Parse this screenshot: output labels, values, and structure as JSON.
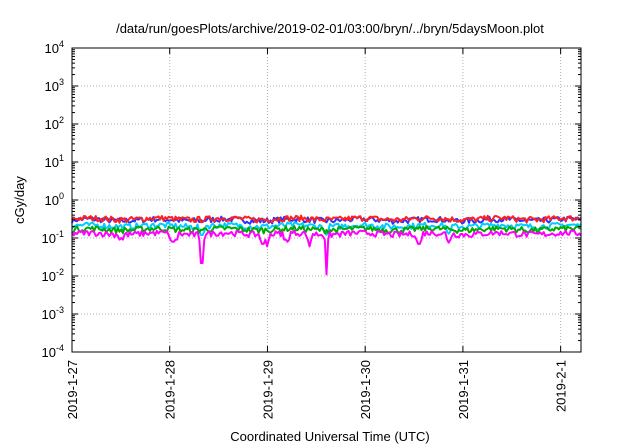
{
  "chart_data": {
    "type": "line",
    "title": "/data/run/goesPlots/archive/2019-02-01/03:00/bryn/../bryn/5daysMoon.plot",
    "xlabel": "Coordinated Universal Time (UTC)",
    "ylabel": "cGy/day",
    "y_scale": "log",
    "ylim": [
      0.0001,
      10000
    ],
    "y_ticks": [
      {
        "base": "10",
        "exp": "-4"
      },
      {
        "base": "10",
        "exp": "-3"
      },
      {
        "base": "10",
        "exp": "-2"
      },
      {
        "base": "10",
        "exp": "-1"
      },
      {
        "base": "10",
        "exp": "0"
      },
      {
        "base": "10",
        "exp": "1"
      },
      {
        "base": "10",
        "exp": "2"
      },
      {
        "base": "10",
        "exp": "3"
      },
      {
        "base": "10",
        "exp": "4"
      }
    ],
    "xlim": [
      "2019-01-27",
      "2019-02-01 05:00"
    ],
    "x_ticks": [
      "2019-1-27",
      "2019-1-28",
      "2019-1-29",
      "2019-1-30",
      "2019-1-31",
      "2019-2-1"
    ],
    "grid": true,
    "legend": "none",
    "series": [
      {
        "color": "#ff00ff",
        "level": 0.13,
        "dips": [
          [
            1.33,
            0.022
          ],
          [
            1.05,
            0.1
          ],
          [
            2.0,
            0.06
          ],
          [
            2.6,
            0.011
          ],
          [
            1.03,
            0.08
          ],
          [
            1.95,
            0.07
          ],
          [
            2.43,
            0.06
          ],
          [
            3.55,
            0.07
          ],
          [
            3.85,
            0.075
          ],
          [
            0.5,
            0.1
          ],
          [
            2.2,
            0.08
          ]
        ]
      },
      {
        "color": "#00aa00",
        "level": 0.17,
        "dips": []
      },
      {
        "color": "#00ccff",
        "level": 0.21,
        "dips": [
          [
            1.33,
            0.12
          ],
          [
            2.6,
            0.12
          ],
          [
            3.85,
            0.13
          ]
        ]
      },
      {
        "color": "#ff2020",
        "level": 0.32,
        "dips": []
      },
      {
        "color": "#3030ff",
        "level": 0.3,
        "dips": []
      }
    ]
  }
}
